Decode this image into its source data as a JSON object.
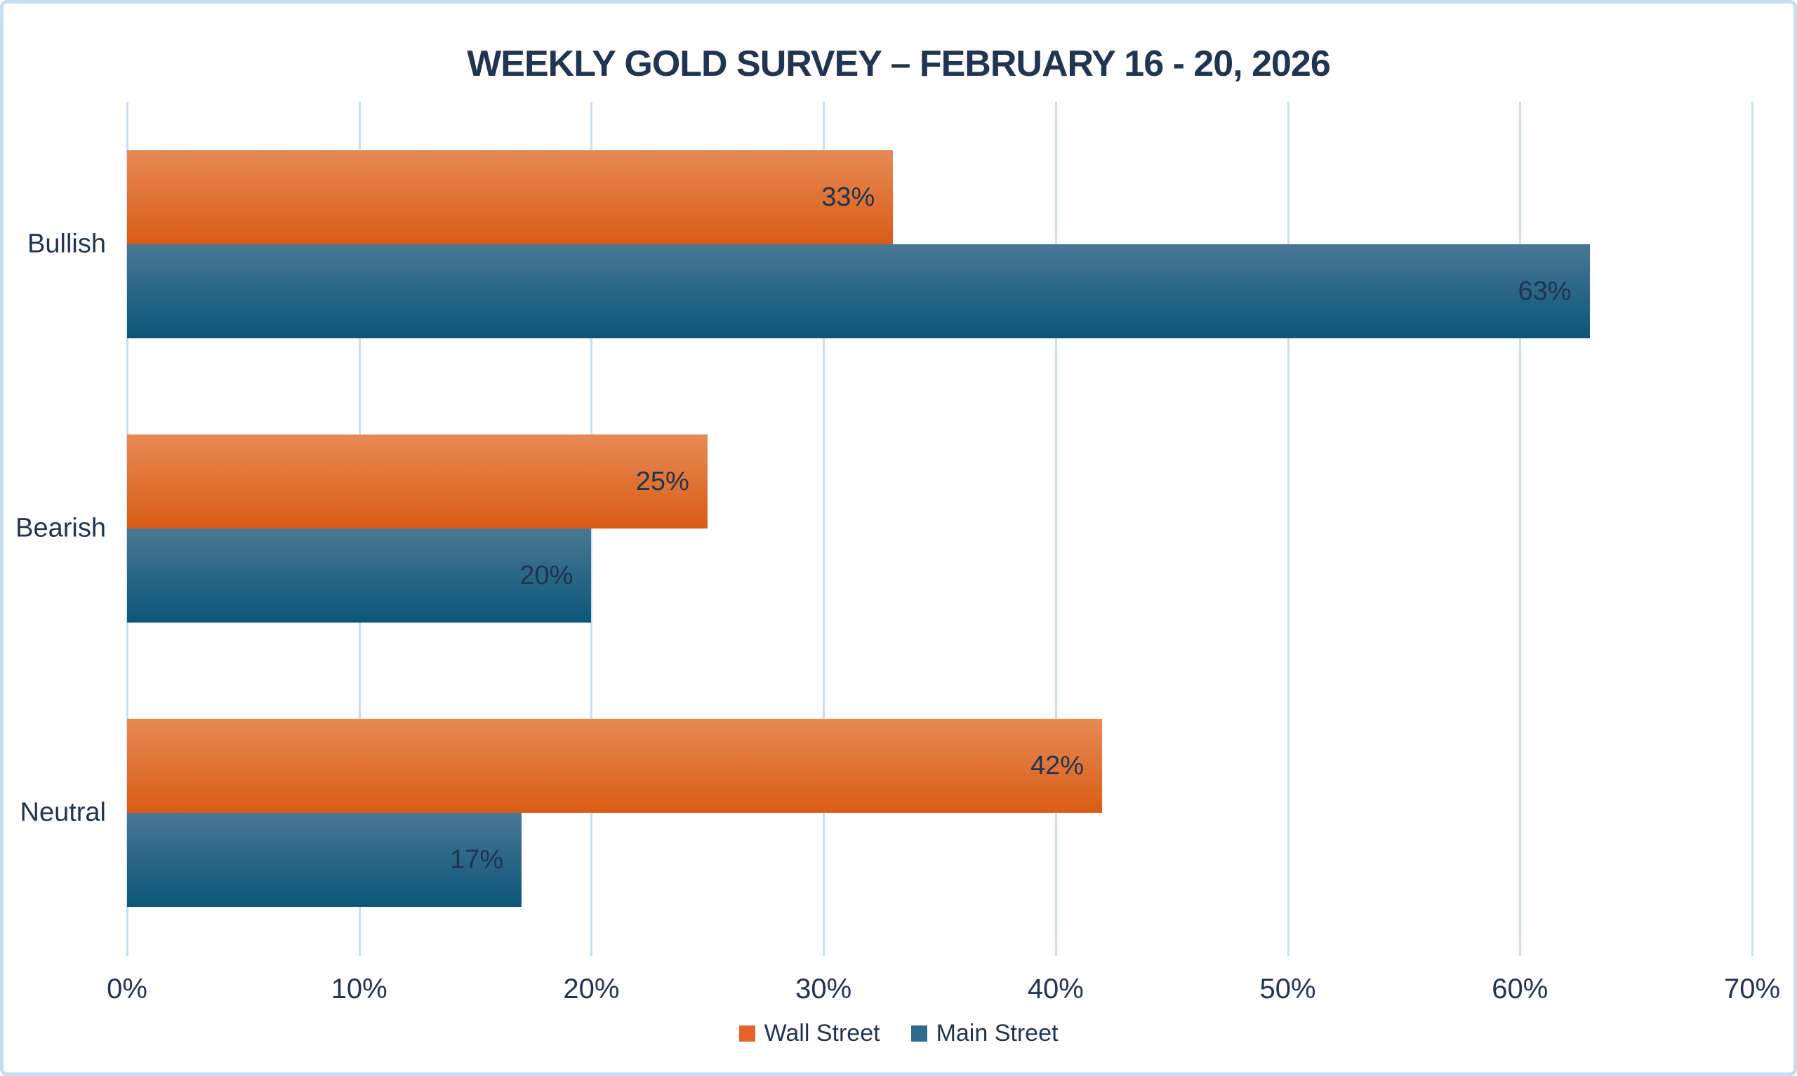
{
  "title": "WEEKLY GOLD SURVEY – FEBRUARY 16 - 20, 2026",
  "chart_data": {
    "type": "bar",
    "orientation": "horizontal",
    "title": "WEEKLY GOLD SURVEY – FEBRUARY 16 - 20, 2026",
    "categories": [
      "Bullish",
      "Bearish",
      "Neutral"
    ],
    "series": [
      {
        "name": "Wall Street",
        "color_key": "wall_street",
        "values": [
          33,
          25,
          42
        ],
        "labels": [
          "33%",
          "25%",
          "42%"
        ]
      },
      {
        "name": "Main Street",
        "color_key": "main_street",
        "values": [
          63,
          20,
          17
        ],
        "labels": [
          "63%",
          "20%",
          "17%"
        ]
      }
    ],
    "value_suffix": "%",
    "xlim": [
      0,
      70
    ],
    "x_tick_step": 10,
    "x_tick_labels": [
      "0%",
      "10%",
      "20%",
      "30%",
      "40%",
      "50%",
      "60%",
      "70%"
    ],
    "grid": true,
    "legend_position": "bottom"
  },
  "colors": {
    "wall_street_top": "#E78A55",
    "wall_street_bottom": "#D95C15",
    "main_street_top": "#4A7793",
    "main_street_bottom": "#0B5678",
    "wall_street_legend": "#E8632C",
    "main_street_legend": "#2E6B8C",
    "text_navy": "#1F3551",
    "gridline": "#C9DEF2",
    "frame_border": "#C7DCF0",
    "background": "#FFFFFF"
  }
}
